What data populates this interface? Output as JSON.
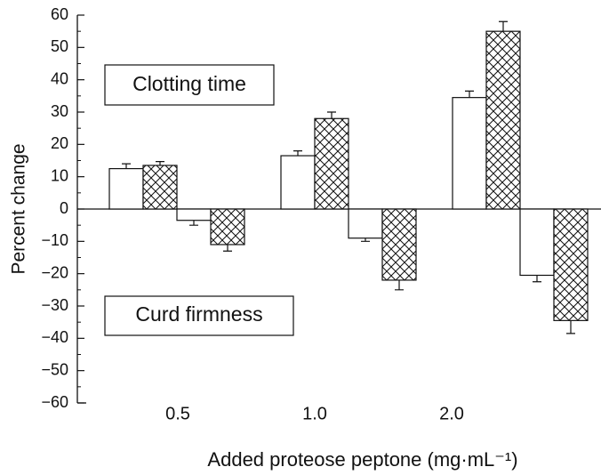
{
  "chart_data": {
    "type": "bar",
    "ylabel": "Percent change",
    "xlabel": "Added proteose peptone (mg·mL⁻¹)",
    "annotations": [
      "Clotting time",
      "Curd firmness"
    ],
    "categories": [
      "0.5",
      "1.0",
      "2.0"
    ],
    "series": [
      {
        "color": "#ffffff",
        "hatch": false,
        "values": [
          12.5,
          16.5,
          34.5
        ],
        "errors": [
          1.5,
          1.5,
          2
        ]
      },
      {
        "color": "#ffffff",
        "hatch": true,
        "values": [
          13.5,
          28,
          55
        ],
        "errors": [
          1.2,
          2,
          3
        ]
      },
      {
        "color": "#ffffff",
        "hatch": false,
        "values": [
          -3.5,
          -9,
          -20.5
        ],
        "errors": [
          1.5,
          1,
          2
        ]
      },
      {
        "color": "#ffffff",
        "hatch": true,
        "values": [
          -11,
          -22,
          -34.5
        ],
        "errors": [
          2,
          3,
          4
        ]
      }
    ],
    "ylim": [
      -60,
      60
    ],
    "yticks": [
      {
        "value": -60,
        "label": "−60"
      },
      {
        "value": -50,
        "label": "−50"
      },
      {
        "value": -40,
        "label": "−40"
      },
      {
        "value": -30,
        "label": "−30"
      },
      {
        "value": -20,
        "label": "−20"
      },
      {
        "value": -10,
        "label": "−10"
      },
      0,
      10,
      20,
      30,
      40,
      50,
      60
    ]
  }
}
